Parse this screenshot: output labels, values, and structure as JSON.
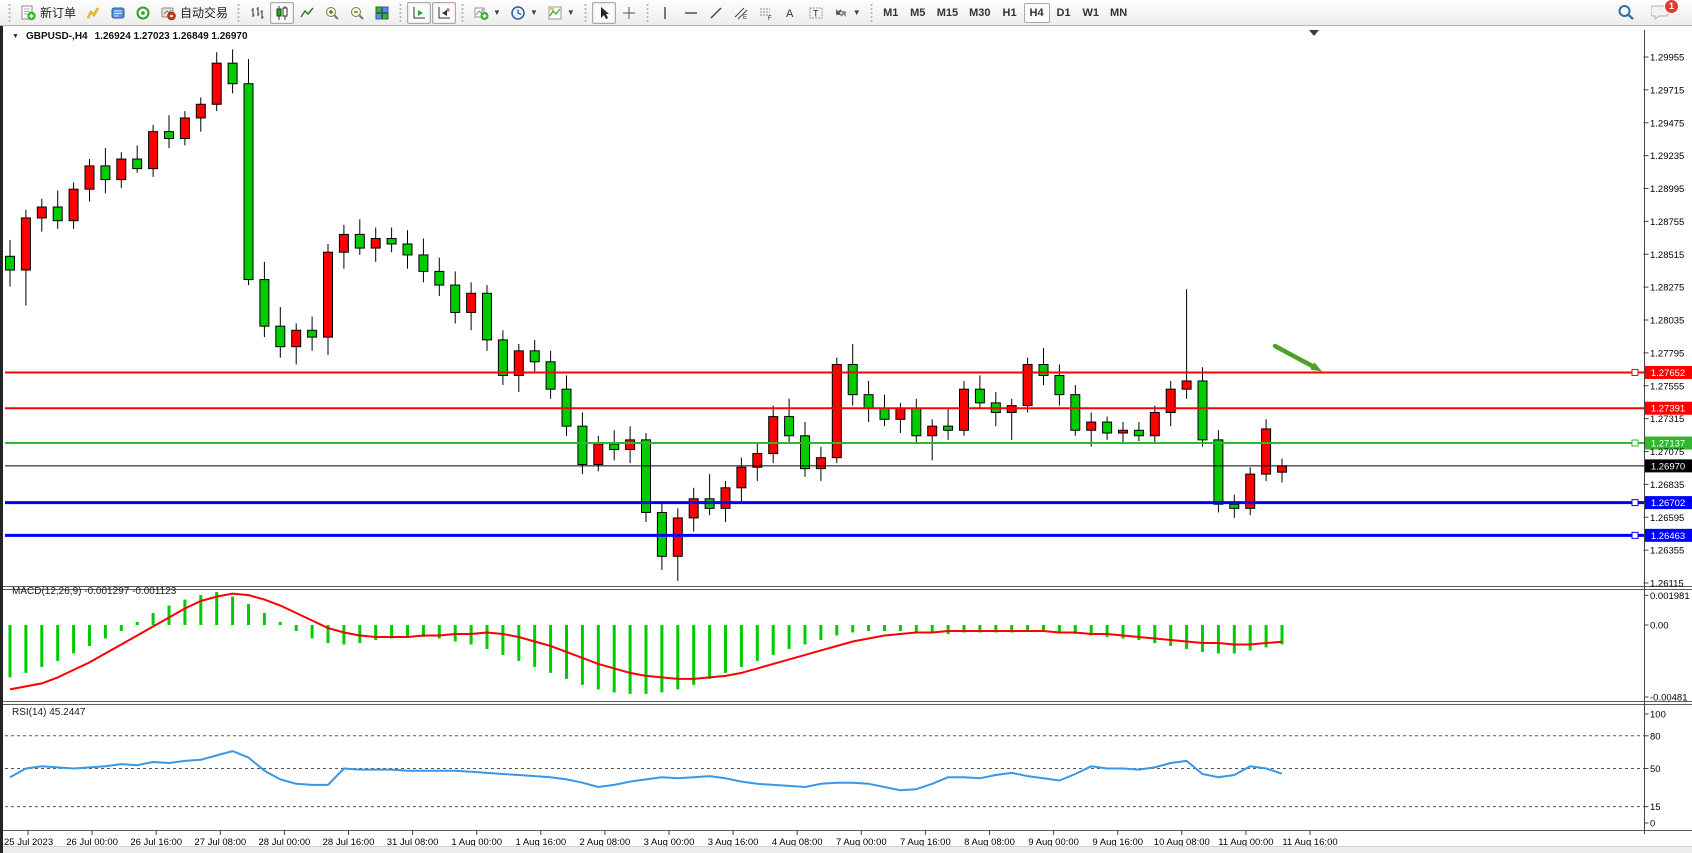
{
  "toolbar": {
    "new_order": "新订单",
    "autotrading": "自动交易",
    "timeframes": [
      "M1",
      "M5",
      "M15",
      "M30",
      "H1",
      "H4",
      "D1",
      "W1",
      "MN"
    ],
    "active_timeframe": "H4",
    "notification_badge": "1",
    "icon_names": [
      "new-order-icon",
      "chart-window-icon",
      "navigator-icon",
      "data-window-icon",
      "autotrading-icon",
      "bar-chart-icon",
      "candlestick-chart-icon",
      "line-chart-icon",
      "zoom-in-icon",
      "zoom-out-icon",
      "tile-windows-icon",
      "auto-scroll-icon",
      "chart-shift-icon",
      "indicators-icon",
      "periods-icon",
      "templates-icon",
      "cursor-icon",
      "crosshair-icon",
      "vertical-line-icon",
      "horizontal-line-icon",
      "trendline-icon",
      "channel-icon",
      "fibonacci-icon",
      "text-icon",
      "label-icon",
      "arrows-icon",
      "search-icon",
      "chat-icon"
    ]
  },
  "chart_title": {
    "symbol_tf": "GBPUSD-,H4",
    "ohlc": "1.26924 1.27023 1.26849 1.26970"
  },
  "chart_data": [
    {
      "type": "candlestick",
      "symbol": "GBPUSD-",
      "timeframe": "H4",
      "current_bar": {
        "open": 1.26924,
        "high": 1.27023,
        "low": 1.26849,
        "close": 1.2697
      },
      "up_color": "#ff0000",
      "down_color": "#00cc00",
      "ylim": [
        1.26115,
        1.29955
      ],
      "y_ticks": [
        "1.29955",
        "1.29715",
        "1.29475",
        "1.29235",
        "1.28995",
        "1.28755",
        "1.28515",
        "1.28275",
        "1.28035",
        "1.27795",
        "1.27555",
        "1.27315",
        "1.27075",
        "1.26835",
        "1.26595",
        "1.26355",
        "1.26115"
      ],
      "x_labels": [
        "25 Jul 2023",
        "26 Jul 00:00",
        "26 Jul 16:00",
        "27 Jul 08:00",
        "28 Jul 00:00",
        "28 Jul 16:00",
        "31 Jul 08:00",
        "1 Aug 00:00",
        "1 Aug 16:00",
        "2 Aug 08:00",
        "3 Aug 00:00",
        "3 Aug 16:00",
        "4 Aug 08:00",
        "7 Aug 00:00",
        "7 Aug 16:00",
        "8 Aug 08:00",
        "9 Aug 00:00",
        "9 Aug 16:00",
        "10 Aug 08:00",
        "11 Aug 00:00",
        "11 Aug 16:00"
      ],
      "hlines": [
        {
          "price": 1.27652,
          "label": "1.27652",
          "color": "#ff0000",
          "width": 2,
          "square": true
        },
        {
          "price": 1.27391,
          "label": "1.27391",
          "color": "#ff0000",
          "width": 2,
          "square": false
        },
        {
          "price": 1.27137,
          "label": "1.27137",
          "color": "#2eb82e",
          "width": 2,
          "square": true
        },
        {
          "price": 1.2697,
          "label": "1.26970",
          "color": "#000000",
          "width": 1,
          "square": false
        },
        {
          "price": 1.26702,
          "label": "1.26702",
          "color": "#0000ff",
          "width": 3,
          "square": true
        },
        {
          "price": 1.26463,
          "label": "1.26463",
          "color": "#0000ff",
          "width": 3,
          "square": true
        }
      ],
      "arrow_object": {
        "color": "#4ca22c",
        "points_to_price": 1.27652
      },
      "candles": [
        [
          1.285,
          1.2862,
          1.2828,
          1.284
        ],
        [
          1.284,
          1.2884,
          1.2814,
          1.2878
        ],
        [
          1.2878,
          1.2892,
          1.2868,
          1.2886
        ],
        [
          1.2886,
          1.2898,
          1.287,
          1.2876
        ],
        [
          1.2876,
          1.2904,
          1.287,
          1.2899
        ],
        [
          1.2899,
          1.2921,
          1.289,
          1.2916
        ],
        [
          1.2916,
          1.2929,
          1.2896,
          1.2906
        ],
        [
          1.2906,
          1.2926,
          1.29,
          1.2921
        ],
        [
          1.2921,
          1.2931,
          1.2911,
          1.2914
        ],
        [
          1.2914,
          1.2946,
          1.2908,
          1.2941
        ],
        [
          1.2941,
          1.2953,
          1.2929,
          1.2936
        ],
        [
          1.2936,
          1.2956,
          1.2931,
          1.2951
        ],
        [
          1.2951,
          1.2966,
          1.2941,
          1.2961
        ],
        [
          1.2961,
          1.2999,
          1.2956,
          1.2991
        ],
        [
          1.2991,
          1.3001,
          1.2969,
          1.2976
        ],
        [
          1.2976,
          1.2994,
          1.2829,
          1.2833
        ],
        [
          1.2833,
          1.2846,
          1.2791,
          1.2799
        ],
        [
          1.2799,
          1.2813,
          1.2776,
          1.2784
        ],
        [
          1.2784,
          1.2801,
          1.2771,
          1.2796
        ],
        [
          1.2796,
          1.2806,
          1.2781,
          1.2791
        ],
        [
          1.2791,
          1.2859,
          1.2778,
          1.2853
        ],
        [
          1.2853,
          1.2873,
          1.2841,
          1.2866
        ],
        [
          1.2866,
          1.2877,
          1.2851,
          1.2856
        ],
        [
          1.2856,
          1.2871,
          1.2846,
          1.2863
        ],
        [
          1.2863,
          1.2871,
          1.2853,
          1.2859
        ],
        [
          1.2859,
          1.2869,
          1.2841,
          1.2851
        ],
        [
          1.2851,
          1.2863,
          1.2831,
          1.2839
        ],
        [
          1.2839,
          1.2849,
          1.2821,
          1.2829
        ],
        [
          1.2829,
          1.2839,
          1.2801,
          1.2809
        ],
        [
          1.2809,
          1.2831,
          1.2796,
          1.2823
        ],
        [
          1.2823,
          1.2829,
          1.2781,
          1.2789
        ],
        [
          1.2789,
          1.2796,
          1.2756,
          1.2763
        ],
        [
          1.2763,
          1.2786,
          1.2751,
          1.2781
        ],
        [
          1.2781,
          1.2789,
          1.2766,
          1.2773
        ],
        [
          1.2773,
          1.2781,
          1.2746,
          1.2753
        ],
        [
          1.2753,
          1.2763,
          1.2719,
          1.2726
        ],
        [
          1.2726,
          1.2736,
          1.2691,
          1.2698
        ],
        [
          1.2698,
          1.2719,
          1.2693,
          1.2713
        ],
        [
          1.2713,
          1.2723,
          1.2701,
          1.2709
        ],
        [
          1.2709,
          1.2726,
          1.2699,
          1.2716
        ],
        [
          1.2716,
          1.2721,
          1.2656,
          1.2663
        ],
        [
          1.2663,
          1.2671,
          1.2621,
          1.2631
        ],
        [
          1.2631,
          1.2666,
          1.2613,
          1.2659
        ],
        [
          1.2659,
          1.2681,
          1.2649,
          1.2673
        ],
        [
          1.2673,
          1.2691,
          1.2661,
          1.2666
        ],
        [
          1.2666,
          1.2686,
          1.2656,
          1.2681
        ],
        [
          1.2681,
          1.2703,
          1.2671,
          1.2696
        ],
        [
          1.2696,
          1.2713,
          1.2686,
          1.2706
        ],
        [
          1.2706,
          1.2741,
          1.2699,
          1.2733
        ],
        [
          1.2733,
          1.2746,
          1.2713,
          1.2719
        ],
        [
          1.2719,
          1.2729,
          1.2689,
          1.2695
        ],
        [
          1.2695,
          1.2711,
          1.2686,
          1.2703
        ],
        [
          1.2703,
          1.2776,
          1.2699,
          1.2771
        ],
        [
          1.2771,
          1.2786,
          1.2741,
          1.2749
        ],
        [
          1.2749,
          1.2759,
          1.2729,
          1.2739
        ],
        [
          1.2739,
          1.2749,
          1.2726,
          1.2731
        ],
        [
          1.2731,
          1.2743,
          1.2721,
          1.2739
        ],
        [
          1.2739,
          1.2746,
          1.2713,
          1.2719
        ],
        [
          1.2719,
          1.2731,
          1.2701,
          1.2726
        ],
        [
          1.2726,
          1.2739,
          1.2716,
          1.2723
        ],
        [
          1.2723,
          1.2759,
          1.2719,
          1.2753
        ],
        [
          1.2753,
          1.2763,
          1.2739,
          1.2743
        ],
        [
          1.2743,
          1.2751,
          1.2726,
          1.2736
        ],
        [
          1.2736,
          1.2746,
          1.2716,
          1.2741
        ],
        [
          1.2741,
          1.2776,
          1.2736,
          1.2771
        ],
        [
          1.2771,
          1.2783,
          1.2756,
          1.2763
        ],
        [
          1.2763,
          1.2771,
          1.2741,
          1.2749
        ],
        [
          1.2749,
          1.2756,
          1.2719,
          1.2723
        ],
        [
          1.2723,
          1.2736,
          1.2711,
          1.2729
        ],
        [
          1.2729,
          1.2733,
          1.2716,
          1.2721
        ],
        [
          1.2721,
          1.2729,
          1.2713,
          1.2723
        ],
        [
          1.2723,
          1.2729,
          1.2715,
          1.2719
        ],
        [
          1.2719,
          1.2741,
          1.2713,
          1.2736
        ],
        [
          1.2736,
          1.2759,
          1.2726,
          1.2753
        ],
        [
          1.2753,
          1.2826,
          1.2746,
          1.2759
        ],
        [
          1.2759,
          1.2769,
          1.2711,
          1.2716
        ],
        [
          1.2716,
          1.2723,
          1.2663,
          1.2669
        ],
        [
          1.2669,
          1.2676,
          1.2659,
          1.2666
        ],
        [
          1.2666,
          1.2696,
          1.2661,
          1.2691
        ],
        [
          1.2691,
          1.2731,
          1.2686,
          1.2724
        ],
        [
          1.26924,
          1.27023,
          1.26849,
          1.2697
        ]
      ]
    },
    {
      "type": "macd",
      "label": "MACD(12,26,9) -0.001297 -0.001123",
      "params": "12,26,9",
      "main_value": "-0.001297",
      "signal_value": "-0.001123",
      "y_ticks": [
        "0.001981",
        "0.00",
        "-0.00481"
      ],
      "hist_color": "#00cc00",
      "signal_color": "#ff0000",
      "histogram": [
        -0.0035,
        -0.0032,
        -0.0028,
        -0.0024,
        -0.0019,
        -0.0014,
        -0.0009,
        -0.0004,
        0.0002,
        0.0008,
        0.0013,
        0.0017,
        0.002,
        0.0022,
        0.0019,
        0.0014,
        0.0008,
        0.0002,
        -0.0004,
        -0.0009,
        -0.0012,
        -0.0013,
        -0.0012,
        -0.001,
        -0.0009,
        -0.0008,
        -0.0008,
        -0.0009,
        -0.0011,
        -0.0013,
        -0.0016,
        -0.002,
        -0.0024,
        -0.0028,
        -0.0032,
        -0.0036,
        -0.004,
        -0.0043,
        -0.0045,
        -0.0046,
        -0.0046,
        -0.0045,
        -0.0043,
        -0.004,
        -0.0036,
        -0.0032,
        -0.0028,
        -0.0024,
        -0.002,
        -0.0016,
        -0.0013,
        -0.001,
        -0.0007,
        -0.0005,
        -0.0004,
        -0.0004,
        -0.0004,
        -0.0005,
        -0.0005,
        -0.0006,
        -0.0005,
        -0.0005,
        -0.0005,
        -0.0005,
        -0.0004,
        -0.0004,
        -0.0005,
        -0.0006,
        -0.0007,
        -0.0008,
        -0.0009,
        -0.001,
        -0.0012,
        -0.0014,
        -0.0016,
        -0.0018,
        -0.0019,
        -0.0019,
        -0.0017,
        -0.0015,
        -0.001297
      ],
      "signal": [
        -0.0043,
        -0.0041,
        -0.0039,
        -0.0035,
        -0.003,
        -0.0025,
        -0.0019,
        -0.0013,
        -0.0007,
        -0.0001,
        0.0005,
        0.0011,
        0.0016,
        0.0019,
        0.0021,
        0.002,
        0.0017,
        0.0013,
        0.0008,
        0.0003,
        -0.0002,
        -0.0005,
        -0.0007,
        -0.0008,
        -0.0008,
        -0.0008,
        -0.0007,
        -0.0007,
        -0.0006,
        -0.0006,
        -0.0005,
        -0.0006,
        -0.0008,
        -0.0011,
        -0.0014,
        -0.0018,
        -0.0022,
        -0.0026,
        -0.0029,
        -0.0032,
        -0.0034,
        -0.0035,
        -0.0036,
        -0.0036,
        -0.0035,
        -0.0034,
        -0.0032,
        -0.0029,
        -0.0026,
        -0.0023,
        -0.002,
        -0.0017,
        -0.0014,
        -0.0011,
        -0.0009,
        -0.0007,
        -0.0006,
        -0.0005,
        -0.0005,
        -0.0004,
        -0.0004,
        -0.0004,
        -0.0004,
        -0.0004,
        -0.0004,
        -0.0004,
        -0.0005,
        -0.0005,
        -0.0006,
        -0.0006,
        -0.0007,
        -0.0008,
        -0.0009,
        -0.001,
        -0.0011,
        -0.0012,
        -0.0012,
        -0.0013,
        -0.0013,
        -0.0012,
        -0.001123
      ]
    },
    {
      "type": "rsi",
      "label": "RSI(14) 45.2447",
      "period": "14",
      "current_value": "45.2447",
      "y_ticks": [
        "100",
        "80",
        "50",
        "15",
        "0"
      ],
      "levels": [
        80,
        50,
        15
      ],
      "line_color": "#3898e8",
      "values": [
        42,
        50,
        52,
        51,
        50,
        51,
        52,
        54,
        53,
        56,
        55,
        57,
        58,
        62,
        66,
        60,
        48,
        40,
        36,
        35,
        35,
        50,
        49,
        49,
        49,
        48,
        48,
        48,
        48,
        47,
        46,
        45,
        44,
        43,
        42,
        40,
        37,
        33,
        35,
        38,
        40,
        42,
        41,
        42,
        43,
        41,
        38,
        36,
        35,
        34,
        33,
        36,
        37,
        37,
        36,
        33,
        30,
        31,
        36,
        42,
        42,
        41,
        44,
        46,
        43,
        41,
        39,
        45,
        52,
        50,
        50,
        49,
        51,
        55,
        57,
        45,
        42,
        44,
        52,
        50,
        45.2447
      ]
    }
  ]
}
